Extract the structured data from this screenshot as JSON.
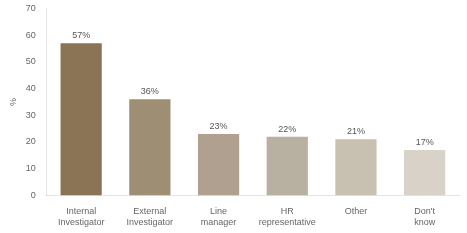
{
  "chart_data": {
    "type": "bar",
    "categories": [
      "Internal\nInvestigator",
      "External\nInvestigator",
      "Line\nmanager",
      "HR\nrepresentative",
      "Other",
      "Don't\nknow"
    ],
    "values": [
      57,
      36,
      23,
      22,
      21,
      17
    ],
    "value_labels": [
      "57%",
      "36%",
      "23%",
      "22%",
      "21%",
      "17%"
    ],
    "data_labels": true,
    "colors": [
      "#8B7355",
      "#9E8E74",
      "#AFA090",
      "#B8B0A0",
      "#C8C0B0",
      "#D8D2C8"
    ],
    "ylabel": "%",
    "ylim": [
      0,
      70
    ],
    "yticks": [
      0,
      10,
      20,
      30,
      40,
      50,
      60,
      70
    ],
    "grid": false
  }
}
